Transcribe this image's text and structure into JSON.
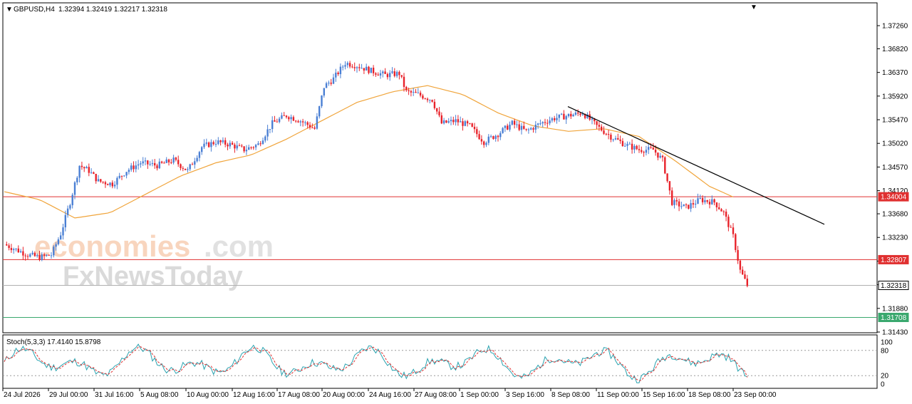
{
  "header": {
    "symbol": "GBPUSD,H4",
    "ohlc": "1.32394 1.32419 1.32217 1.32318"
  },
  "stoch_label": "Stoch(5,3,3) 17.4140 15.8798",
  "watermark": {
    "part1": "economies",
    "part2": ".com",
    "part3": "FxNewsToday"
  },
  "colors": {
    "bull": "#4a7fd4",
    "bear": "#e8222a",
    "ma": "#f0a43a",
    "resistance": "#e03030",
    "support": "#3aa86e",
    "current": "#b0b0b0",
    "trendline": "#000000",
    "stoch_main": "#2aa3b0",
    "stoch_signal": "#e03030"
  },
  "chart_data": {
    "type": "candlestick",
    "price_axis_ticks": [
      "1.37260",
      "1.36820",
      "1.36370",
      "1.35920",
      "1.35470",
      "1.35020",
      "1.34570",
      "1.34120",
      "1.33680",
      "1.33230",
      "1.32780",
      "1.32330",
      "1.31880",
      "1.31430"
    ],
    "price_axis_values": [
      1.3726,
      1.3682,
      1.3637,
      1.3592,
      1.3547,
      1.3502,
      1.3457,
      1.3412,
      1.3368,
      1.3323,
      1.3278,
      1.3233,
      1.3188,
      1.3143
    ],
    "ylim": [
      1.3143,
      1.3726
    ],
    "time_axis_labels": [
      "24 Jul 2026",
      "29 Jul 00:00",
      "31 Jul 16:00",
      "5 Aug 08:00",
      "10 Aug 00:00",
      "12 Aug 16:00",
      "17 Aug 08:00",
      "20 Aug 00:00",
      "24 Aug 16:00",
      "27 Aug 08:00",
      "1 Sep 00:00",
      "3 Sep 16:00",
      "8 Sep 08:00",
      "11 Sep 00:00",
      "15 Sep 16:00",
      "18 Sep 08:00",
      "23 Sep 00:00"
    ],
    "levels": [
      {
        "label": "1.34004",
        "value": 1.34004,
        "kind": "resistance"
      },
      {
        "label": "1.32807",
        "value": 1.32807,
        "kind": "resistance"
      },
      {
        "label": "1.32318",
        "value": 1.32318,
        "kind": "current"
      },
      {
        "label": "1.31708",
        "value": 1.31708,
        "kind": "support"
      }
    ],
    "trendline": {
      "start": 1.3572,
      "end": 1.3348
    },
    "key_closes": [
      [
        0,
        1.331
      ],
      [
        10,
        1.329
      ],
      [
        15,
        1.3285
      ],
      [
        20,
        1.329
      ],
      [
        24,
        1.333
      ],
      [
        28,
        1.339
      ],
      [
        32,
        1.346
      ],
      [
        36,
        1.345
      ],
      [
        40,
        1.343
      ],
      [
        46,
        1.3425
      ],
      [
        52,
        1.345
      ],
      [
        58,
        1.3465
      ],
      [
        65,
        1.346
      ],
      [
        72,
        1.347
      ],
      [
        78,
        1.345
      ],
      [
        84,
        1.3495
      ],
      [
        90,
        1.3505
      ],
      [
        96,
        1.35
      ],
      [
        102,
        1.349
      ],
      [
        108,
        1.35
      ],
      [
        114,
        1.354
      ],
      [
        120,
        1.3555
      ],
      [
        126,
        1.3545
      ],
      [
        132,
        1.353
      ],
      [
        136,
        1.361
      ],
      [
        140,
        1.3625
      ],
      [
        145,
        1.3655
      ],
      [
        150,
        1.365
      ],
      [
        156,
        1.364
      ],
      [
        162,
        1.3632
      ],
      [
        168,
        1.3635
      ],
      [
        171,
        1.36
      ],
      [
        176,
        1.3595
      ],
      [
        182,
        1.3585
      ],
      [
        186,
        1.354
      ],
      [
        192,
        1.3545
      ],
      [
        198,
        1.3535
      ],
      [
        204,
        1.3505
      ],
      [
        210,
        1.352
      ],
      [
        216,
        1.354
      ],
      [
        222,
        1.3525
      ],
      [
        228,
        1.354
      ],
      [
        234,
        1.355
      ],
      [
        240,
        1.3555
      ],
      [
        246,
        1.356
      ],
      [
        252,
        1.3535
      ],
      [
        258,
        1.3515
      ],
      [
        264,
        1.35
      ],
      [
        270,
        1.349
      ],
      [
        276,
        1.349
      ],
      [
        280,
        1.347
      ],
      [
        284,
        1.339
      ],
      [
        290,
        1.338
      ],
      [
        296,
        1.3395
      ],
      [
        302,
        1.339
      ],
      [
        306,
        1.337
      ],
      [
        310,
        1.3325
      ],
      [
        313,
        1.326
      ],
      [
        316,
        1.3232
      ]
    ],
    "ma_values": [
      [
        0,
        1.341
      ],
      [
        15,
        1.3395
      ],
      [
        30,
        1.336
      ],
      [
        45,
        1.337
      ],
      [
        60,
        1.3405
      ],
      [
        75,
        1.344
      ],
      [
        90,
        1.3465
      ],
      [
        105,
        1.348
      ],
      [
        120,
        1.351
      ],
      [
        135,
        1.3545
      ],
      [
        150,
        1.358
      ],
      [
        165,
        1.36
      ],
      [
        180,
        1.3612
      ],
      [
        195,
        1.3595
      ],
      [
        210,
        1.356
      ],
      [
        225,
        1.3535
      ],
      [
        240,
        1.3525
      ],
      [
        255,
        1.353
      ],
      [
        270,
        1.3515
      ],
      [
        285,
        1.347
      ],
      [
        300,
        1.342
      ],
      [
        310,
        1.34
      ]
    ],
    "stoch_axis_ticks": [
      "100",
      "80",
      "20",
      "0"
    ],
    "stoch_axis_values": [
      100,
      80,
      20,
      0
    ],
    "stoch_main_last": 17.414,
    "stoch_signal_last": 15.8798
  }
}
